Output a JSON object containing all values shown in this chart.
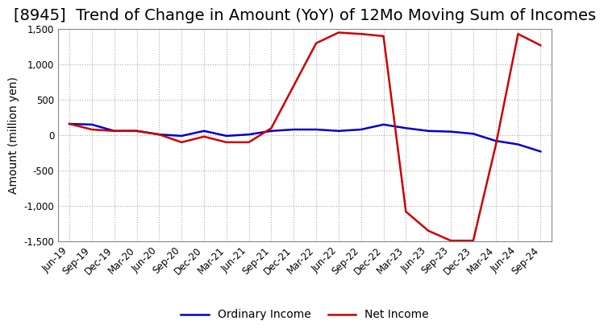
{
  "title": "[8945]  Trend of Change in Amount (YoY) of 12Mo Moving Sum of Incomes",
  "ylabel": "Amount (million yen)",
  "ylim": [
    -1500,
    1500
  ],
  "yticks": [
    -1500,
    -1000,
    -500,
    0,
    500,
    1000,
    1500
  ],
  "x_labels": [
    "Jun-19",
    "Sep-19",
    "Dec-19",
    "Mar-20",
    "Jun-20",
    "Sep-20",
    "Dec-20",
    "Mar-21",
    "Jun-21",
    "Sep-21",
    "Dec-21",
    "Mar-22",
    "Jun-22",
    "Sep-22",
    "Dec-22",
    "Mar-23",
    "Jun-23",
    "Sep-23",
    "Dec-23",
    "Mar-24",
    "Jun-24",
    "Sep-24"
  ],
  "ordinary_income": [
    160,
    150,
    60,
    60,
    10,
    -10,
    60,
    -10,
    10,
    60,
    80,
    80,
    60,
    80,
    150,
    100,
    60,
    50,
    20,
    -80,
    -130,
    -230
  ],
  "net_income": [
    160,
    80,
    60,
    60,
    10,
    -100,
    -20,
    -100,
    -100,
    100,
    700,
    1300,
    1450,
    1430,
    1400,
    -1080,
    -1350,
    -1490,
    -1490,
    -150,
    1430,
    1270
  ],
  "ordinary_income_color": "#0000cc",
  "net_income_color": "#cc0000",
  "line_width": 1.8,
  "title_fontsize": 14,
  "tick_fontsize": 8.5,
  "label_fontsize": 10,
  "background_color": "#ffffff",
  "grid_color": "#aaaaaa",
  "grid_linestyle": ":"
}
